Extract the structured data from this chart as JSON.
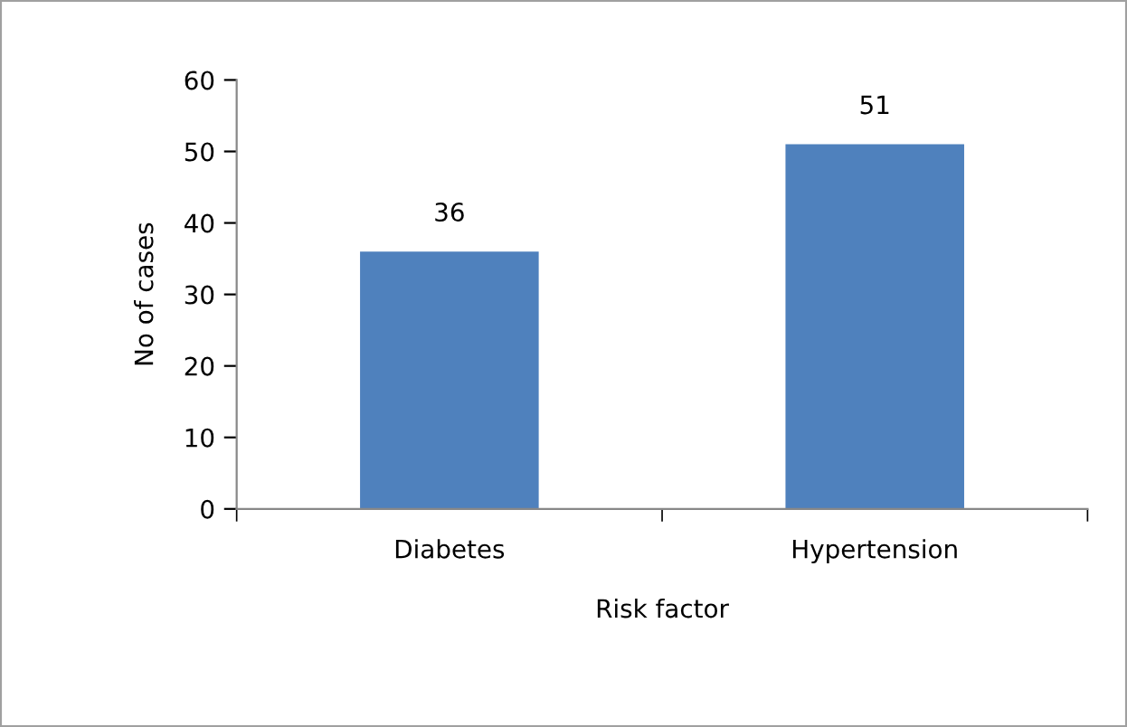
{
  "chart_data": {
    "type": "bar",
    "xlabel": "Risk factor",
    "ylabel": "No of cases",
    "categories": [
      "Diabetes",
      "Hypertension"
    ],
    "values": [
      36,
      51
    ],
    "color": "#4f81bd",
    "ylim": [
      0,
      60
    ],
    "yticks": [
      0,
      10,
      20,
      30,
      40,
      50,
      60
    ],
    "grid": false,
    "data_labels": true
  }
}
